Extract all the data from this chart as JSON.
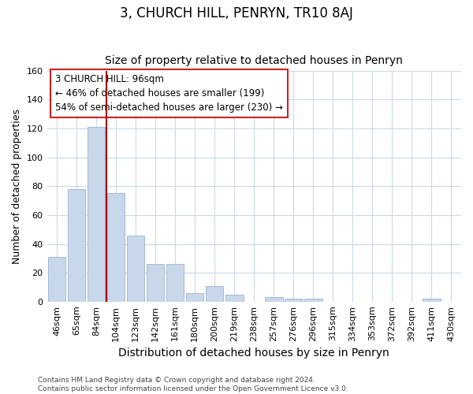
{
  "title": "3, CHURCH HILL, PENRYN, TR10 8AJ",
  "subtitle": "Size of property relative to detached houses in Penryn",
  "xlabel": "Distribution of detached houses by size in Penryn",
  "ylabel": "Number of detached properties",
  "categories": [
    "46sqm",
    "65sqm",
    "84sqm",
    "104sqm",
    "123sqm",
    "142sqm",
    "161sqm",
    "180sqm",
    "200sqm",
    "219sqm",
    "238sqm",
    "257sqm",
    "276sqm",
    "296sqm",
    "315sqm",
    "334sqm",
    "353sqm",
    "372sqm",
    "392sqm",
    "411sqm",
    "430sqm"
  ],
  "values": [
    31,
    78,
    121,
    75,
    46,
    26,
    26,
    6,
    11,
    5,
    0,
    3,
    2,
    2,
    0,
    0,
    0,
    0,
    0,
    2,
    0
  ],
  "bar_color": "#c8d8ea",
  "bar_edge_color": "#9ab4cc",
  "grid_color": "#ccd8e8",
  "background_color": "#ffffff",
  "vline_color": "#aa0000",
  "vline_x": 2.5,
  "annotation_text": "3 CHURCH HILL: 96sqm\n← 46% of detached houses are smaller (199)\n54% of semi-detached houses are larger (230) →",
  "annotation_box_color": "white",
  "annotation_box_edge_color": "#cc2222",
  "ylim": [
    0,
    160
  ],
  "yticks": [
    0,
    20,
    40,
    60,
    80,
    100,
    120,
    140,
    160
  ],
  "title_fontsize": 12,
  "subtitle_fontsize": 10,
  "xlabel_fontsize": 10,
  "ylabel_fontsize": 9,
  "tick_fontsize": 8,
  "annotation_fontsize": 8.5,
  "footnote_fontsize": 6.5,
  "footnote": "Contains HM Land Registry data © Crown copyright and database right 2024.\nContains public sector information licensed under the Open Government Licence v3.0."
}
